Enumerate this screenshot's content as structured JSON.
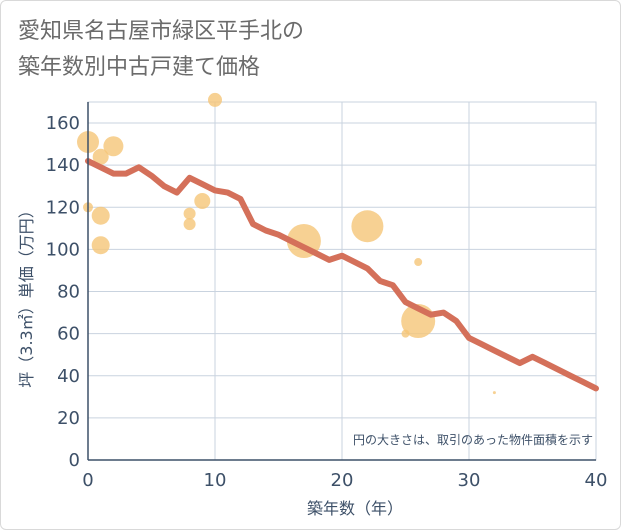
{
  "title_line1": "愛知県名古屋市緑区平手北の",
  "title_line2": "築年数別中古戸建て価格",
  "chart_data": {
    "type": "scatter",
    "title": "愛知県名古屋市緑区平手北の築年数別中古戸建て価格",
    "xlabel": "築年数（年）",
    "ylabel": "坪（3.3㎡）単価（万円）",
    "xlim": [
      0,
      40
    ],
    "ylim": [
      0,
      170
    ],
    "xticks": [
      0,
      10,
      20,
      30,
      40
    ],
    "yticks": [
      0,
      20,
      40,
      60,
      80,
      100,
      120,
      140,
      160
    ],
    "grid": true,
    "note": "円の大きさは、取引のあった物件面積を示す",
    "colors": {
      "bubble": "#f5c678",
      "trend": "#d4705a",
      "grid": "#c9d3df",
      "axis": "#3d5068"
    },
    "bubbles": [
      {
        "x": 0,
        "y": 151,
        "size": 11
      },
      {
        "x": 0,
        "y": 120,
        "size": 5
      },
      {
        "x": 1,
        "y": 144,
        "size": 8
      },
      {
        "x": 1,
        "y": 116,
        "size": 9
      },
      {
        "x": 1,
        "y": 102,
        "size": 9
      },
      {
        "x": 2,
        "y": 149,
        "size": 10
      },
      {
        "x": 8,
        "y": 117,
        "size": 6
      },
      {
        "x": 8,
        "y": 112,
        "size": 6
      },
      {
        "x": 9,
        "y": 123,
        "size": 8
      },
      {
        "x": 10,
        "y": 171,
        "size": 7
      },
      {
        "x": 17,
        "y": 104,
        "size": 17
      },
      {
        "x": 22,
        "y": 111,
        "size": 16
      },
      {
        "x": 25,
        "y": 60,
        "size": 4
      },
      {
        "x": 26,
        "y": 94,
        "size": 4
      },
      {
        "x": 26,
        "y": 66,
        "size": 17
      },
      {
        "x": 32,
        "y": 32,
        "size": 1.5
      }
    ],
    "trend": {
      "x": [
        0,
        1,
        2,
        3,
        4,
        5,
        6,
        7,
        8,
        9,
        10,
        11,
        12,
        13,
        14,
        15,
        16,
        17,
        18,
        19,
        20,
        21,
        22,
        23,
        24,
        25,
        26,
        27,
        28,
        29,
        30,
        31,
        32,
        33,
        34,
        35,
        36,
        37,
        38,
        39,
        40
      ],
      "y": [
        142,
        139,
        136,
        136,
        139,
        135,
        130,
        127,
        134,
        131,
        128,
        127,
        124,
        112,
        109,
        107,
        104,
        101,
        98,
        95,
        97,
        94,
        91,
        85,
        83,
        75,
        72,
        69,
        70,
        66,
        58,
        55,
        52,
        49,
        46,
        49,
        46,
        43,
        40,
        37,
        34
      ]
    }
  }
}
